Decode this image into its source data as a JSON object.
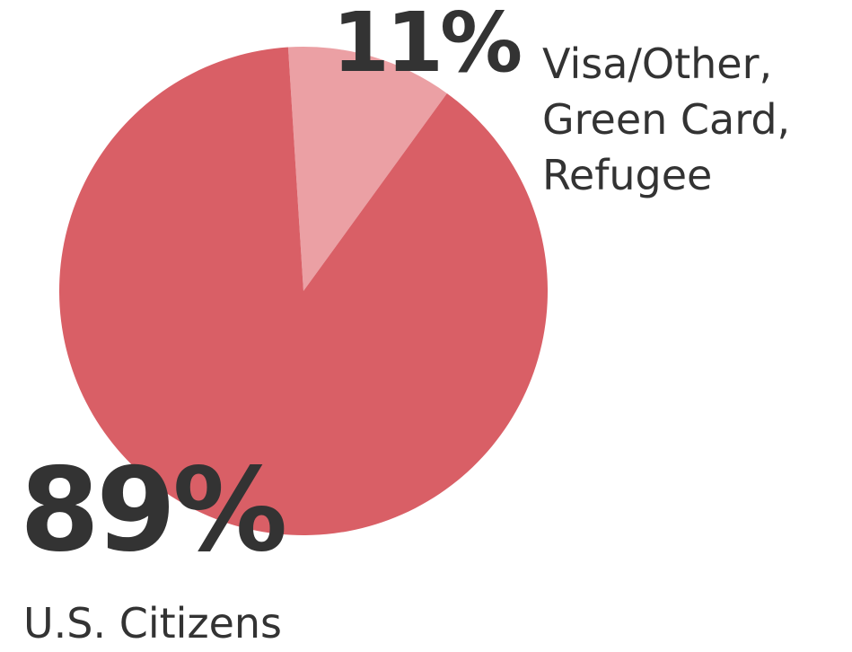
{
  "chart_data": {
    "type": "pie",
    "slices": [
      {
        "value": 11,
        "percent_label": "11%",
        "label_lines": [
          "Visa/Other,",
          "Green Card,",
          "Refugee"
        ],
        "color": "#eba0a4"
      },
      {
        "value": 89,
        "percent_label": "89%",
        "label_lines": [
          "U.S. Citizens"
        ],
        "color": "#d95f66"
      }
    ]
  }
}
